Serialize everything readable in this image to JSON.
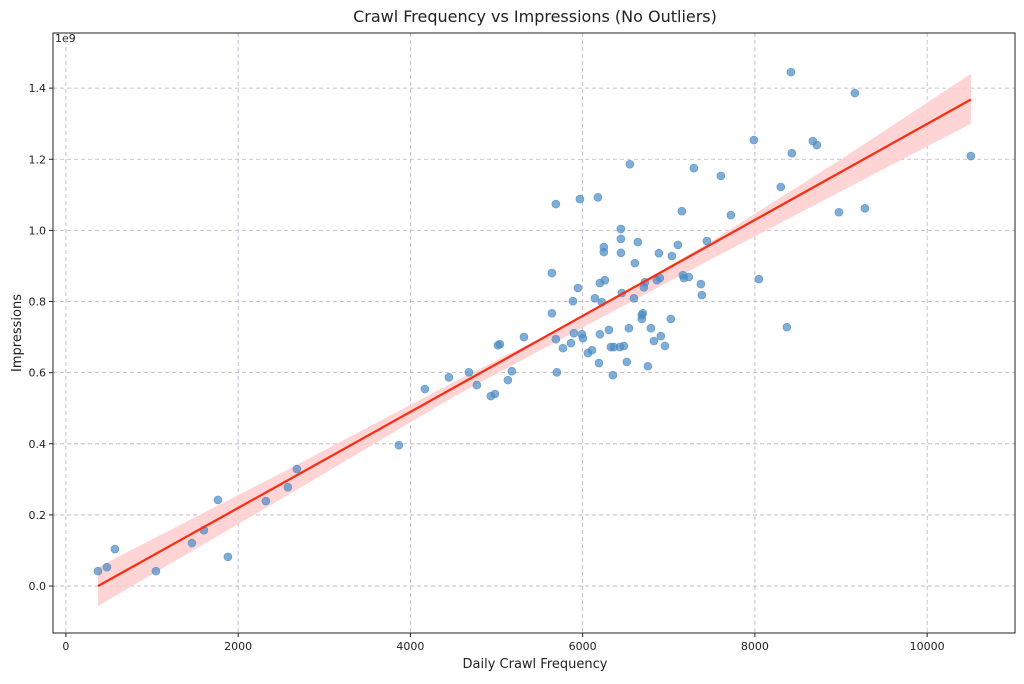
{
  "chart_data": {
    "type": "scatter",
    "title": "Crawl Frequency vs Impressions (No Outliers)",
    "xlabel": "Daily Crawl Frequency",
    "ylabel": "Impressions",
    "y_offset_label": "1e9",
    "xlim": [
      -150,
      11020
    ],
    "ylim": [
      -0.132,
      1.555
    ],
    "xticks": [
      0,
      2000,
      4000,
      6000,
      8000,
      10000
    ],
    "xtick_labels": [
      "0",
      "2000",
      "4000",
      "6000",
      "8000",
      "10000"
    ],
    "yticks": [
      0.0,
      0.2,
      0.4,
      0.6,
      0.8,
      1.0,
      1.2,
      1.4
    ],
    "ytick_labels": [
      "0.0",
      "0.2",
      "0.4",
      "0.6",
      "0.8",
      "1.0",
      "1.2",
      "1.4"
    ],
    "grid": true,
    "point_color": "#4a8ac4",
    "line_color": "#ff2a0f",
    "band_color": "#ffcccc",
    "points": [
      [
        372,
        0.042
      ],
      [
        476,
        0.053
      ],
      [
        569,
        0.104
      ],
      [
        1045,
        0.042
      ],
      [
        1463,
        0.121
      ],
      [
        1602,
        0.157
      ],
      [
        1765,
        0.242
      ],
      [
        1881,
        0.082
      ],
      [
        2322,
        0.239
      ],
      [
        2577,
        0.278
      ],
      [
        2682,
        0.329
      ],
      [
        3866,
        0.396
      ],
      [
        4168,
        0.554
      ],
      [
        4447,
        0.587
      ],
      [
        4679,
        0.601
      ],
      [
        4772,
        0.565
      ],
      [
        4934,
        0.534
      ],
      [
        4981,
        0.54
      ],
      [
        5016,
        0.677
      ],
      [
        5039,
        0.68
      ],
      [
        5132,
        0.579
      ],
      [
        5178,
        0.604
      ],
      [
        5318,
        0.7
      ],
      [
        5643,
        0.88
      ],
      [
        5643,
        0.767
      ],
      [
        5689,
        1.074
      ],
      [
        5689,
        0.694
      ],
      [
        5701,
        0.601
      ],
      [
        5771,
        0.669
      ],
      [
        5864,
        0.683
      ],
      [
        5887,
        0.801
      ],
      [
        5898,
        0.711
      ],
      [
        5945,
        0.838
      ],
      [
        5968,
        1.088
      ],
      [
        5991,
        0.708
      ],
      [
        6003,
        0.697
      ],
      [
        6061,
        0.655
      ],
      [
        6108,
        0.663
      ],
      [
        6142,
        0.809
      ],
      [
        6177,
        1.093
      ],
      [
        6189,
        0.627
      ],
      [
        6200,
        0.708
      ],
      [
        6200,
        0.852
      ],
      [
        6223,
        0.798
      ],
      [
        6246,
        0.953
      ],
      [
        6246,
        0.939
      ],
      [
        6258,
        0.86
      ],
      [
        6305,
        0.72
      ],
      [
        6328,
        0.672
      ],
      [
        6351,
        0.593
      ],
      [
        6362,
        0.672
      ],
      [
        6432,
        0.672
      ],
      [
        6444,
        1.004
      ],
      [
        6444,
        0.976
      ],
      [
        6444,
        0.937
      ],
      [
        6455,
        0.824
      ],
      [
        6478,
        0.675
      ],
      [
        6513,
        0.63
      ],
      [
        6537,
        0.725
      ],
      [
        6548,
        1.186
      ],
      [
        6595,
        0.809
      ],
      [
        6606,
        0.908
      ],
      [
        6641,
        0.967
      ],
      [
        6687,
        0.762
      ],
      [
        6687,
        0.751
      ],
      [
        6699,
        0.767
      ],
      [
        6711,
        0.84
      ],
      [
        6722,
        0.854
      ],
      [
        6757,
        0.618
      ],
      [
        6792,
        0.725
      ],
      [
        6827,
        0.689
      ],
      [
        6862,
        0.86
      ],
      [
        6885,
        0.936
      ],
      [
        6897,
        0.866
      ],
      [
        6908,
        0.703
      ],
      [
        6955,
        0.675
      ],
      [
        7024,
        0.751
      ],
      [
        7036,
        0.928
      ],
      [
        7106,
        0.959
      ],
      [
        7152,
        1.054
      ],
      [
        7164,
        0.874
      ],
      [
        7175,
        0.866
      ],
      [
        7233,
        0.869
      ],
      [
        7291,
        1.175
      ],
      [
        7373,
        0.849
      ],
      [
        7384,
        0.818
      ],
      [
        7442,
        0.97
      ],
      [
        7605,
        1.153
      ],
      [
        7721,
        1.043
      ],
      [
        7988,
        1.254
      ],
      [
        8046,
        0.863
      ],
      [
        8301,
        1.122
      ],
      [
        8371,
        0.728
      ],
      [
        8418,
        1.445
      ],
      [
        8429,
        1.217
      ],
      [
        8673,
        1.251
      ],
      [
        8720,
        1.24
      ],
      [
        8975,
        1.051
      ],
      [
        9161,
        1.386
      ],
      [
        9277,
        1.062
      ],
      [
        10508,
        1.209
      ]
    ],
    "regression": {
      "line": [
        [
          372,
          0.0
        ],
        [
          10508,
          1.368
        ]
      ],
      "ci_band": [
        {
          "x": 372,
          "lower": -0.056,
          "upper": 0.053
        },
        {
          "x": 2500,
          "lower": 0.245,
          "upper": 0.318
        },
        {
          "x": 4500,
          "lower": 0.532,
          "upper": 0.573
        },
        {
          "x": 6000,
          "lower": 0.727,
          "upper": 0.758
        },
        {
          "x": 7500,
          "lower": 0.92,
          "upper": 0.97
        },
        {
          "x": 9000,
          "lower": 1.11,
          "upper": 1.2
        },
        {
          "x": 10508,
          "lower": 1.3,
          "upper": 1.44
        }
      ]
    }
  }
}
